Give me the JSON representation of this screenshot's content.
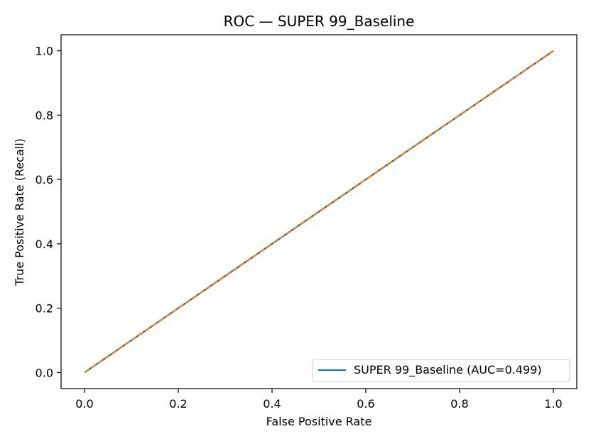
{
  "chart_data": {
    "type": "line",
    "title": "ROC — SUPER 99_Baseline",
    "xlabel": "False Positive Rate",
    "ylabel": "True Positive Rate (Recall)",
    "xlim": [
      -0.05,
      1.05
    ],
    "ylim": [
      -0.05,
      1.05
    ],
    "xticks": [
      0.0,
      0.2,
      0.4,
      0.6,
      0.8,
      1.0
    ],
    "yticks": [
      0.0,
      0.2,
      0.4,
      0.6,
      0.8,
      1.0
    ],
    "xtick_labels": [
      "0.0",
      "0.2",
      "0.4",
      "0.6",
      "0.8",
      "1.0"
    ],
    "ytick_labels": [
      "0.0",
      "0.2",
      "0.4",
      "0.6",
      "0.8",
      "1.0"
    ],
    "grid": false,
    "legend_position": "lower-right",
    "series": [
      {
        "name": "SUPER 99_Baseline (AUC=0.499)",
        "color": "#1f77b4",
        "style": "solid",
        "x": [
          0.0,
          1.0
        ],
        "y": [
          0.0,
          1.0
        ]
      },
      {
        "color": "#ff7f0e",
        "style": "dashed",
        "x": [
          0.0,
          1.0
        ],
        "y": [
          0.0,
          1.0
        ]
      }
    ]
  }
}
